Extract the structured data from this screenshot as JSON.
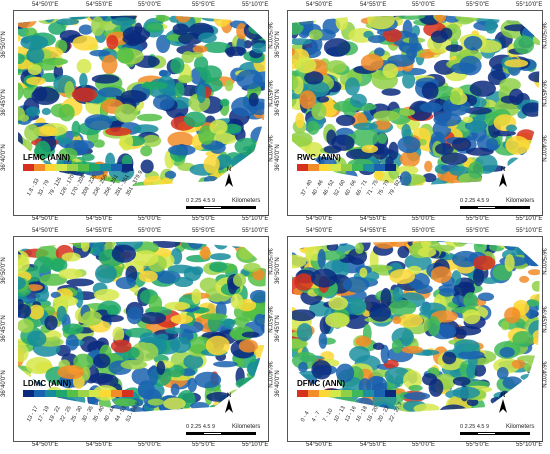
{
  "panels": [
    {
      "id": "lfmc",
      "title": "LFMC (ANN)",
      "classes": [
        "1.8 - 33",
        "33 - 79",
        "79 - 126",
        "126 - 170",
        "170 - 209",
        "209 - 236",
        "236 - 256",
        "256 - 281",
        "281 - 351",
        "351 - 379.9"
      ],
      "colors": [
        "#d7301f",
        "#f28c28",
        "#fdd835",
        "#d5e84a",
        "#9bd448",
        "#55c045",
        "#1fa86a",
        "#178c9c",
        "#1a63b0",
        "#0b2a7e"
      ]
    },
    {
      "id": "rwc",
      "title": "RWC (ANN)",
      "classes": [
        "37 - 40",
        "40 - 46",
        "46 - 52",
        "52 - 60",
        "60 - 66",
        "66 - 71",
        "71 - 75",
        "75 - 79",
        "79 - 82.9"
      ],
      "colors": [
        "#d7301f",
        "#f28c28",
        "#fdd835",
        "#d5e84a",
        "#8fd048",
        "#3fb85a",
        "#1d8fa0",
        "#1a63b0",
        "#0b2a7e"
      ]
    },
    {
      "id": "ldmc",
      "title": "LDMC (ANN)",
      "classes": [
        "13 - 17",
        "17 - 19",
        "19 - 22",
        "22 - 25",
        "25 - 30",
        "30 - 35",
        "35 - 40",
        "40 - 44",
        "44 - 53",
        "53 - 68.7"
      ],
      "colors": [
        "#0b2a7e",
        "#1a63b0",
        "#178c9c",
        "#1fa86a",
        "#55c045",
        "#9bd448",
        "#d5e84a",
        "#fdd835",
        "#f28c28",
        "#d7301f"
      ]
    },
    {
      "id": "dfmc",
      "title": "DFMC (ANN)",
      "classes": [
        "0 - 4",
        "4 - 7",
        "7 - 10",
        "10 - 13",
        "13 - 16",
        "16 - 18",
        "18 - 20",
        "20 - 22",
        "22 - 27.7"
      ],
      "colors": [
        "#d7301f",
        "#f28c28",
        "#fdd835",
        "#d5e84a",
        "#8fd048",
        "#3fb85a",
        "#1d8fa0",
        "#1a63b0",
        "#0b2a7e"
      ]
    }
  ],
  "scale": {
    "ticks": [
      "0",
      "2.25",
      "4.5",
      "9"
    ],
    "unit": "Kilometers"
  },
  "north_label": "N",
  "lon_ticks": [
    "54°50'0\"E",
    "54°55'0\"E",
    "55°0'0\"E",
    "55°5'0\"E",
    "55°10'0\"E"
  ],
  "lat_ticks": [
    "36°50'0\"N",
    "36°45'0\"N",
    "36°40'0\"N"
  ]
}
